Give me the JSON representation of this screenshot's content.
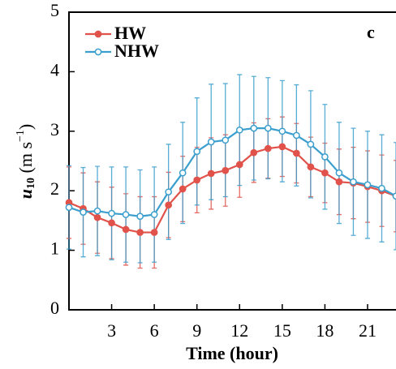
{
  "chart_data": {
    "type": "line",
    "panel_label": "c",
    "x_label": "Time (hour)",
    "y_label": [
      "u",
      "10",
      " (m s",
      "−1",
      ")"
    ],
    "x": [
      0,
      1,
      2,
      3,
      4,
      5,
      6,
      7,
      8,
      9,
      10,
      11,
      12,
      13,
      14,
      15,
      16,
      17,
      18,
      19,
      20,
      21,
      22,
      23
    ],
    "series": [
      {
        "name": "HW",
        "color": "#e0524a",
        "marker_fill": "#e0524a",
        "values": [
          1.8,
          1.7,
          1.55,
          1.46,
          1.35,
          1.3,
          1.3,
          1.76,
          2.03,
          2.18,
          2.29,
          2.34,
          2.44,
          2.64,
          2.71,
          2.74,
          2.63,
          2.4,
          2.3,
          2.15,
          2.13,
          2.07,
          2.0,
          1.91
        ],
        "errors": [
          0.6,
          0.6,
          0.6,
          0.6,
          0.6,
          0.6,
          0.6,
          0.55,
          0.55,
          0.55,
          0.6,
          0.6,
          0.55,
          0.5,
          0.5,
          0.5,
          0.5,
          0.5,
          0.5,
          0.55,
          0.6,
          0.6,
          0.6,
          0.6
        ]
      },
      {
        "name": "NHW",
        "color": "#3b9fce",
        "marker_fill": "#ffffff",
        "values": [
          1.72,
          1.64,
          1.66,
          1.62,
          1.6,
          1.57,
          1.6,
          1.98,
          2.3,
          2.66,
          2.82,
          2.85,
          3.02,
          3.05,
          3.05,
          3.0,
          2.93,
          2.78,
          2.57,
          2.3,
          2.15,
          2.1,
          2.04,
          1.91
        ],
        "errors": [
          0.7,
          0.75,
          0.75,
          0.78,
          0.8,
          0.78,
          0.8,
          0.8,
          0.85,
          0.9,
          0.97,
          0.95,
          0.93,
          0.87,
          0.85,
          0.85,
          0.85,
          0.9,
          0.88,
          0.85,
          0.9,
          0.9,
          0.9,
          0.9
        ]
      }
    ],
    "xlim": [
      0,
      23
    ],
    "xticks": [
      3,
      6,
      9,
      12,
      15,
      18,
      21
    ],
    "ylim": [
      0,
      5
    ],
    "yticks": [
      0,
      1,
      2,
      3,
      4,
      5
    ],
    "legend": "top-left"
  }
}
